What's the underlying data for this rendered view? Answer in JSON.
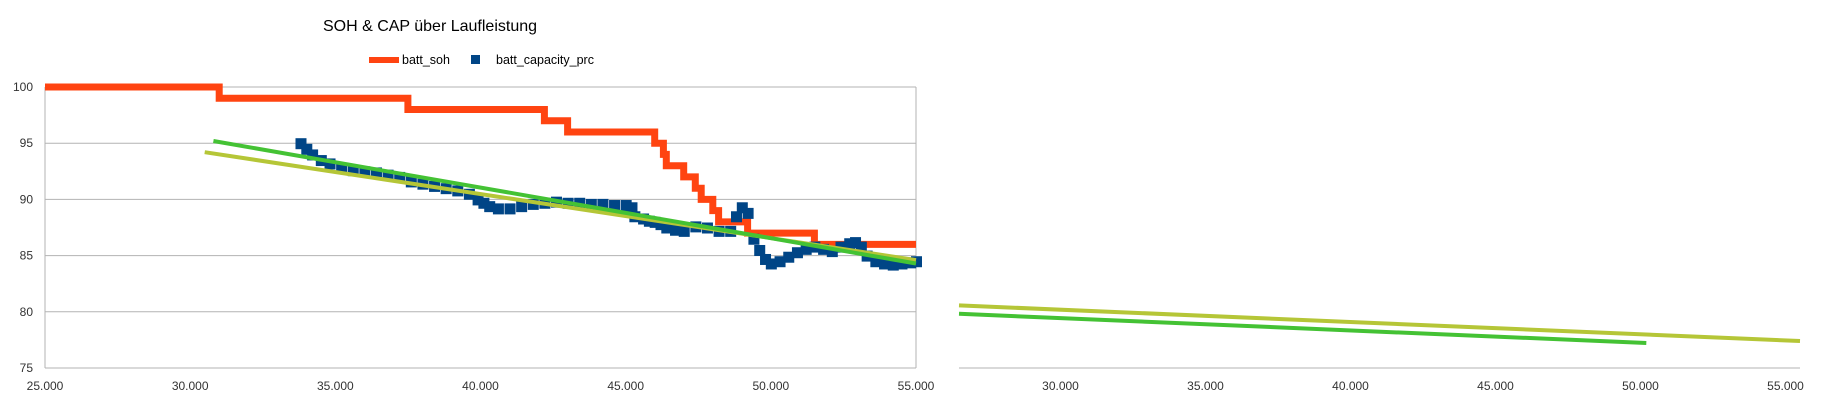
{
  "chart_data": [
    {
      "type": "line",
      "title": "SOH & CAP über Laufleistung",
      "xlabel": "",
      "ylabel": "",
      "xlim": [
        25000,
        55000
      ],
      "ylim": [
        75,
        100
      ],
      "x_ticks": [
        "25.000",
        "30.000",
        "35.000",
        "40.000",
        "45.000",
        "50.000",
        "55.000"
      ],
      "y_ticks": [
        "75",
        "80",
        "85",
        "90",
        "95",
        "100"
      ],
      "grid": true,
      "legend": "top",
      "series": [
        {
          "name": "batt_soh",
          "color": "#ff4411",
          "kind": "line",
          "points": [
            [
              25000,
              100
            ],
            [
              31000,
              100
            ],
            [
              31000,
              99
            ],
            [
              37500,
              99
            ],
            [
              37500,
              98
            ],
            [
              42200,
              98
            ],
            [
              42200,
              97
            ],
            [
              43000,
              97
            ],
            [
              43000,
              96
            ],
            [
              46000,
              96
            ],
            [
              46000,
              95
            ],
            [
              46300,
              95
            ],
            [
              46300,
              94
            ],
            [
              46400,
              94
            ],
            [
              46400,
              93
            ],
            [
              47000,
              93
            ],
            [
              47000,
              92
            ],
            [
              47400,
              92
            ],
            [
              47400,
              91
            ],
            [
              47600,
              91
            ],
            [
              47600,
              90
            ],
            [
              48000,
              90
            ],
            [
              48000,
              89
            ],
            [
              48200,
              89
            ],
            [
              48200,
              88
            ],
            [
              49200,
              88
            ],
            [
              49200,
              87
            ],
            [
              51500,
              87
            ],
            [
              51500,
              86
            ],
            [
              55000,
              86
            ]
          ]
        },
        {
          "name": "batt_capacity_prc",
          "color": "#004586",
          "kind": "scatter",
          "points": [
            [
              33800,
              95
            ],
            [
              34000,
              94.5
            ],
            [
              34200,
              94
            ],
            [
              34500,
              93.5
            ],
            [
              34800,
              93.2
            ],
            [
              35200,
              92.8
            ],
            [
              35600,
              92.6
            ],
            [
              36000,
              92.5
            ],
            [
              36400,
              92.4
            ],
            [
              36800,
              92.2
            ],
            [
              37200,
              92
            ],
            [
              37600,
              91.6
            ],
            [
              38000,
              91.4
            ],
            [
              38400,
              91.2
            ],
            [
              38800,
              91
            ],
            [
              39200,
              90.8
            ],
            [
              39600,
              90.5
            ],
            [
              39900,
              90
            ],
            [
              40100,
              89.7
            ],
            [
              40300,
              89.4
            ],
            [
              40600,
              89.2
            ],
            [
              41000,
              89.2
            ],
            [
              41400,
              89.4
            ],
            [
              41800,
              89.6
            ],
            [
              42200,
              89.7
            ],
            [
              42600,
              89.8
            ],
            [
              43000,
              89.7
            ],
            [
              43400,
              89.7
            ],
            [
              43800,
              89.6
            ],
            [
              44200,
              89.6
            ],
            [
              44600,
              89.5
            ],
            [
              45000,
              89.5
            ],
            [
              45200,
              89.3
            ],
            [
              45300,
              88.5
            ],
            [
              45600,
              88.3
            ],
            [
              45800,
              88.1
            ],
            [
              46000,
              88
            ],
            [
              46200,
              87.8
            ],
            [
              46400,
              87.5
            ],
            [
              46700,
              87.3
            ],
            [
              47000,
              87.2
            ],
            [
              47400,
              87.6
            ],
            [
              47800,
              87.5
            ],
            [
              48200,
              87.2
            ],
            [
              48600,
              87.2
            ],
            [
              48800,
              88.5
            ],
            [
              49000,
              89.3
            ],
            [
              49200,
              88.8
            ],
            [
              49400,
              86.5
            ],
            [
              49600,
              85.5
            ],
            [
              49800,
              84.7
            ],
            [
              50000,
              84.3
            ],
            [
              50300,
              84.5
            ],
            [
              50600,
              84.9
            ],
            [
              50900,
              85.3
            ],
            [
              51200,
              85.6
            ],
            [
              51500,
              85.8
            ],
            [
              51800,
              85.6
            ],
            [
              52100,
              85.4
            ],
            [
              52400,
              85.8
            ],
            [
              52700,
              86.1
            ],
            [
              52900,
              86.2
            ],
            [
              53100,
              85.8
            ],
            [
              53300,
              85
            ],
            [
              53600,
              84.5
            ],
            [
              53900,
              84.3
            ],
            [
              54200,
              84.2
            ],
            [
              54500,
              84.3
            ],
            [
              54800,
              84.4
            ],
            [
              55000,
              84.5
            ]
          ]
        },
        {
          "name": "",
          "color": "#b5c637",
          "kind": "line",
          "points": [
            [
              30500,
              94.2
            ],
            [
              55000,
              84.6
            ]
          ]
        },
        {
          "name": "",
          "color": "#44c234",
          "kind": "line",
          "points": [
            [
              30800,
              95.2
            ],
            [
              55000,
              84.3
            ]
          ]
        }
      ]
    },
    {
      "type": "line",
      "title": "",
      "xlim": [
        26500,
        55500
      ],
      "x_ticks": [
        "30.000",
        "35.000",
        "40.000",
        "45.000",
        "50.000",
        "55.000"
      ],
      "series": [
        {
          "name": "",
          "color": "#b5c637",
          "kind": "line",
          "points": [
            [
              26500,
              0.94
            ],
            [
              55500,
              0.05
            ]
          ]
        },
        {
          "name": "",
          "color": "#44c234",
          "kind": "line",
          "points": [
            [
              26500,
              0.73
            ],
            [
              50200,
              0
            ]
          ]
        }
      ]
    }
  ]
}
